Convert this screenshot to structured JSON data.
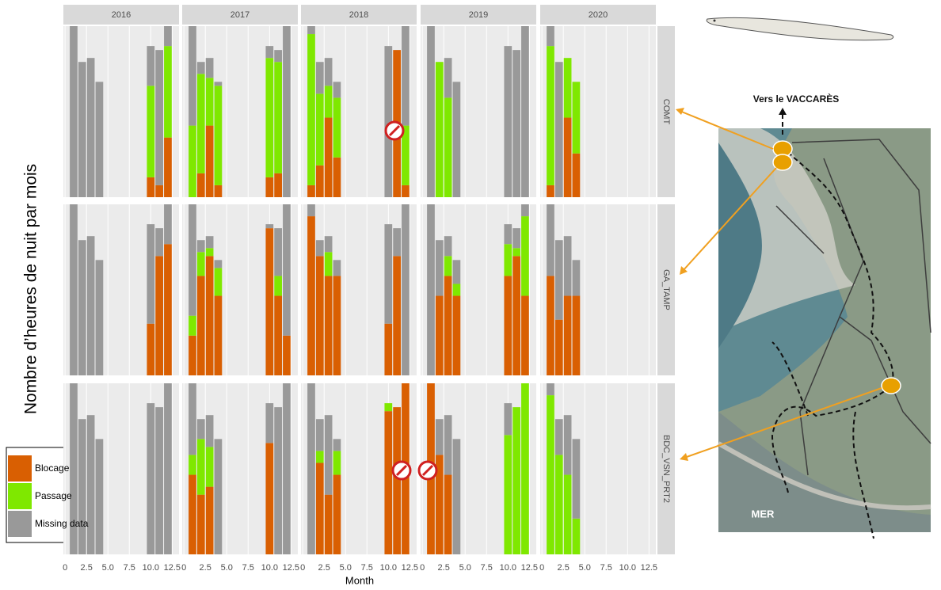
{
  "chart_data": {
    "type": "bar",
    "stacked": true,
    "y_label": "Nombre d’heures de nuit par mois",
    "x_label": "Month",
    "columns": [
      "2016",
      "2017",
      "2018",
      "2019",
      "2020"
    ],
    "rows": [
      "COMT",
      "GA_TAMP",
      "BDC_VSN_PRT2"
    ],
    "x": [
      1,
      2,
      3,
      4,
      10,
      11,
      12
    ],
    "xlim": [
      -0.2,
      13.3
    ],
    "xticks": [
      0,
      2.5,
      {
        "value": 5,
        "label": "5.0"
      },
      7.5,
      {
        "value": 10,
        "label": "10.0"
      },
      12.5
    ],
    "ylim": [
      0,
      430
    ],
    "grid": true,
    "legend": "bottom-left",
    "series": [
      {
        "name": "Blocage",
        "color": "#d95f02"
      },
      {
        "name": "Passage",
        "color": "#7fe800"
      },
      {
        "name": "Missing data",
        "color": "#999999"
      }
    ],
    "panels": [
      [
        [
          [
            0,
            0,
            0,
            0,
            50,
            30,
            150
          ],
          [
            0,
            0,
            0,
            0,
            230,
            0,
            230
          ],
          [
            430,
            340,
            350,
            290,
            100,
            340,
            50
          ]
        ],
        [
          [
            0,
            60,
            180,
            30,
            50,
            60,
            0
          ],
          [
            180,
            250,
            120,
            250,
            300,
            280,
            0
          ],
          [
            250,
            30,
            50,
            10,
            30,
            30,
            430
          ]
        ],
        [
          [
            30,
            80,
            200,
            100,
            0,
            370,
            30
          ],
          [
            380,
            180,
            80,
            150,
            0,
            0,
            150
          ],
          [
            20,
            80,
            70,
            40,
            380,
            0,
            250
          ]
        ],
        [
          [
            0,
            0,
            0,
            0,
            0,
            0,
            0
          ],
          [
            0,
            340,
            250,
            0,
            0,
            0,
            0
          ],
          [
            430,
            0,
            100,
            290,
            380,
            370,
            430
          ]
        ],
        [
          [
            30,
            0,
            200,
            110,
            null,
            null,
            null
          ],
          [
            350,
            0,
            150,
            180,
            null,
            null,
            null
          ],
          [
            50,
            340,
            0,
            0,
            null,
            null,
            null
          ]
        ]
      ],
      [
        [
          [
            0,
            0,
            0,
            0,
            130,
            300,
            330
          ],
          [
            0,
            0,
            0,
            0,
            0,
            0,
            0
          ],
          [
            430,
            340,
            350,
            290,
            250,
            70,
            100
          ]
        ],
        [
          [
            100,
            250,
            300,
            200,
            370,
            200,
            100
          ],
          [
            50,
            60,
            20,
            70,
            0,
            50,
            0
          ],
          [
            280,
            30,
            30,
            20,
            10,
            120,
            330
          ]
        ],
        [
          [
            400,
            300,
            250,
            250,
            130,
            300,
            0
          ],
          [
            0,
            0,
            60,
            0,
            0,
            0,
            0
          ],
          [
            30,
            40,
            40,
            40,
            250,
            70,
            430
          ]
        ],
        [
          [
            0,
            200,
            250,
            200,
            250,
            300,
            200
          ],
          [
            0,
            0,
            50,
            30,
            80,
            20,
            200
          ],
          [
            430,
            140,
            50,
            60,
            50,
            50,
            30
          ]
        ],
        [
          [
            250,
            140,
            200,
            200,
            null,
            null,
            null
          ],
          [
            0,
            0,
            0,
            0,
            null,
            null,
            null
          ],
          [
            180,
            200,
            150,
            90,
            null,
            null,
            null
          ]
        ]
      ],
      [
        [
          [
            0,
            0,
            0,
            0,
            0,
            0,
            0
          ],
          [
            0,
            0,
            0,
            0,
            0,
            0,
            0
          ],
          [
            430,
            340,
            350,
            290,
            380,
            370,
            430
          ]
        ],
        [
          [
            200,
            150,
            170,
            0,
            280,
            0,
            0
          ],
          [
            50,
            140,
            100,
            0,
            0,
            0,
            0
          ],
          [
            180,
            50,
            80,
            290,
            100,
            370,
            430
          ]
        ],
        [
          [
            0,
            230,
            150,
            200,
            360,
            370,
            430
          ],
          [
            0,
            30,
            0,
            60,
            20,
            0,
            0
          ],
          [
            430,
            80,
            200,
            30,
            0,
            0,
            0
          ]
        ],
        [
          [
            430,
            250,
            200,
            0,
            0,
            0,
            0
          ],
          [
            0,
            0,
            0,
            0,
            300,
            370,
            430
          ],
          [
            0,
            90,
            150,
            290,
            80,
            0,
            0
          ]
        ],
        [
          [
            0,
            0,
            0,
            0,
            null,
            null,
            null
          ],
          [
            400,
            250,
            200,
            90,
            null,
            null,
            null
          ],
          [
            30,
            90,
            150,
            200,
            null,
            null,
            null
          ]
        ]
      ]
    ]
  },
  "map": {
    "north_label": "Vers le VACCARÈS",
    "south_label": "MER"
  }
}
